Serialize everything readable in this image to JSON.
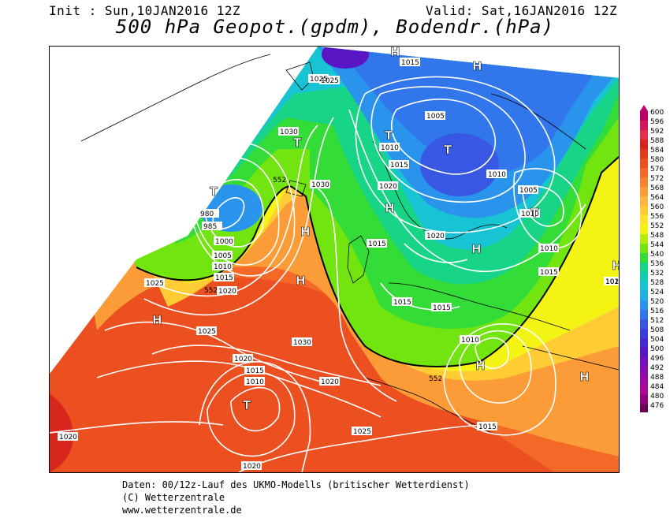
{
  "header": {
    "init": "Init : Sun,10JAN2016 12Z",
    "valid": "Valid: Sat,16JAN2016 12Z",
    "title": "500 hPa Geopot.(gpdm), Bodendr.(hPa)"
  },
  "footer": {
    "line1": "Daten: 00/12z-Lauf des UKMO-Modells (britischer Wetterdienst)",
    "line2": "(C) Wetterzentrale",
    "line3": "www.wetterzentrale.de"
  },
  "legend": {
    "values": [
      "600",
      "596",
      "592",
      "588",
      "584",
      "580",
      "576",
      "572",
      "568",
      "564",
      "560",
      "556",
      "552",
      "548",
      "544",
      "540",
      "536",
      "532",
      "528",
      "524",
      "520",
      "516",
      "512",
      "508",
      "504",
      "500",
      "496",
      "492",
      "488",
      "484",
      "480",
      "476"
    ],
    "colors": [
      "#c0006a",
      "#d2185a",
      "#e4304a",
      "#d8261c",
      "#e23a1c",
      "#ec5020",
      "#f46828",
      "#f88230",
      "#fb9c38",
      "#fdb440",
      "#ffcc36",
      "#ffe22a",
      "#f4f414",
      "#b4ec10",
      "#72e410",
      "#34dc38",
      "#18d486",
      "#14ccb4",
      "#18c4d4",
      "#20aee4",
      "#2a94ec",
      "#3276ec",
      "#3858e4",
      "#3c3ed8",
      "#4428d0",
      "#5a16c4",
      "#7410bc",
      "#8a0cb0",
      "#9c0aa2",
      "#ac0894",
      "#8e0478",
      "#6a0258"
    ]
  },
  "map": {
    "pressure_labels": [
      "1015",
      "1025",
      "1025",
      "1030",
      "1005",
      "1010",
      "1015",
      "1030",
      "1020",
      "1010",
      "1005",
      "1010",
      "980",
      "985",
      "1000",
      "1005",
      "1010",
      "1015",
      "1020",
      "1015",
      "1020",
      "1010",
      "1015",
      "1015",
      "1015",
      "1010",
      "1025",
      "1030",
      "1025",
      "1020",
      "1015",
      "1010",
      "1020",
      "1025",
      "1020",
      "1015",
      "1020",
      "1015",
      "1020"
    ],
    "centers": [
      "H",
      "H",
      "T",
      "T",
      "T",
      "T",
      "H",
      "H",
      "H",
      "H",
      "H",
      "T",
      "T",
      "H",
      "H",
      "H"
    ],
    "geopot_labels": [
      "552",
      "552",
      "552"
    ]
  }
}
